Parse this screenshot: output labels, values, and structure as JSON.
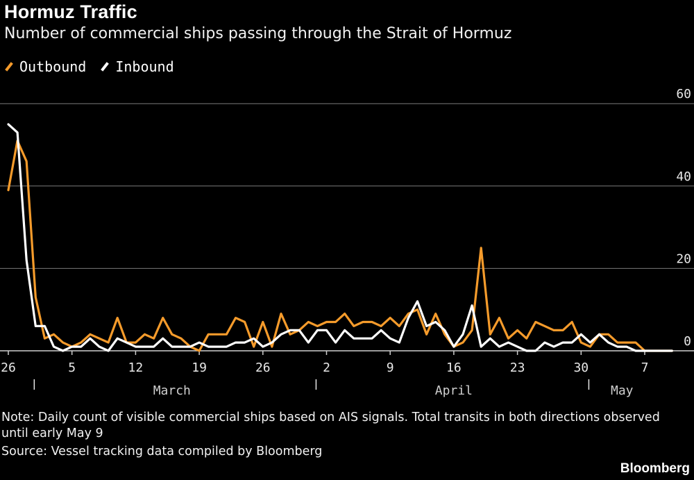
{
  "title": "Hormuz Traffic",
  "subtitle": "Number of commercial ships passing through the Strait of Hormuz",
  "note": "Note: Daily count of visible commercial ships based on AIS signals. Total transits in both directions observed until early May 9",
  "source": "Source: Vessel tracking data compiled by Bloomberg",
  "brand": "Bloomberg",
  "chart_data": {
    "type": "line",
    "title": "Hormuz Traffic",
    "subtitle": "Number of commercial ships passing through the Strait of Hormuz",
    "x_start": "Feb 26",
    "x_tick_labels": [
      "26",
      "5",
      "12",
      "19",
      "26",
      "2",
      "9",
      "16",
      "23",
      "30",
      "7"
    ],
    "x_tick_days": [
      0,
      7,
      14,
      21,
      28,
      35,
      42,
      49,
      56,
      63,
      70
    ],
    "month_labels": [
      "March",
      "April",
      "May"
    ],
    "month_starts_days": [
      3,
      34,
      64
    ],
    "ylim": [
      0,
      60
    ],
    "y_ticks": [
      0,
      20,
      40,
      60
    ],
    "grid": true,
    "legend_position": "top-left",
    "series": [
      {
        "name": "Outbound",
        "color": "#f59b2b",
        "values": [
          39,
          51,
          46,
          13,
          3,
          4,
          2,
          1,
          2,
          4,
          3,
          2,
          8,
          2,
          2,
          4,
          3,
          8,
          4,
          3,
          1,
          0,
          4,
          4,
          4,
          8,
          7,
          1,
          7,
          1,
          9,
          4,
          5,
          7,
          6,
          7,
          7,
          9,
          6,
          7,
          7,
          6,
          8,
          6,
          9,
          10,
          4,
          9,
          4,
          1,
          2,
          5,
          25,
          4,
          8,
          3,
          5,
          3,
          7,
          6,
          5,
          5,
          7,
          2,
          1,
          4,
          4,
          2,
          2,
          2,
          0,
          0,
          0,
          0
        ]
      },
      {
        "name": "Inbound",
        "color": "#ffffff",
        "values": [
          55,
          53,
          22,
          6,
          6,
          1,
          0,
          1,
          1,
          3,
          1,
          0,
          3,
          2,
          1,
          1,
          1,
          3,
          1,
          1,
          1,
          2,
          1,
          1,
          1,
          2,
          2,
          3,
          1,
          2,
          4,
          5,
          5,
          2,
          5,
          5,
          2,
          5,
          3,
          3,
          3,
          5,
          3,
          2,
          8,
          12,
          6,
          7,
          5,
          1,
          4,
          11,
          1,
          3,
          1,
          2,
          1,
          0,
          0,
          2,
          1,
          2,
          2,
          4,
          2,
          4,
          2,
          1,
          1,
          0,
          0,
          0,
          0,
          0
        ]
      }
    ]
  }
}
